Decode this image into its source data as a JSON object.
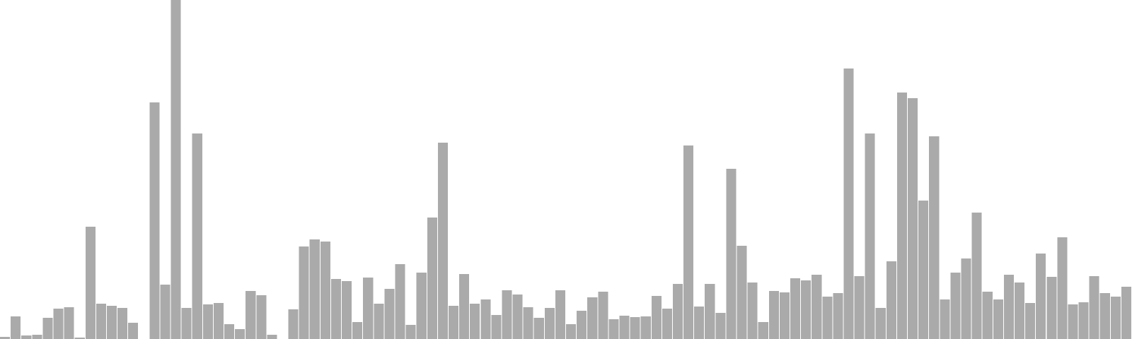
{
  "chart_data": {
    "type": "bar",
    "title": "",
    "xlabel": "",
    "ylabel": "",
    "bar_color": "#aaaaaa",
    "grid": false,
    "legend": "none",
    "ylim": [
      0,
      480
    ],
    "values": [
      3,
      32,
      5,
      6,
      30,
      43,
      45,
      2,
      159,
      50,
      47,
      44,
      23,
      0,
      335,
      77,
      500,
      44,
      291,
      49,
      51,
      21,
      14,
      68,
      62,
      6,
      0,
      42,
      131,
      141,
      138,
      85,
      82,
      24,
      87,
      50,
      71,
      106,
      20,
      94,
      172,
      278,
      47,
      92,
      50,
      56,
      34,
      69,
      63,
      45,
      30,
      44,
      69,
      21,
      40,
      59,
      67,
      28,
      33,
      31,
      32,
      61,
      43,
      78,
      274,
      46,
      78,
      37,
      241,
      132,
      80,
      24,
      68,
      66,
      86,
      83,
      91,
      60,
      65,
      383,
      89,
      291,
      44,
      110,
      349,
      341,
      196,
      287,
      56,
      94,
      114,
      179,
      67,
      56,
      91,
      80,
      51,
      121,
      88,
      144,
      49,
      52,
      89,
      65,
      60,
      74
    ]
  }
}
